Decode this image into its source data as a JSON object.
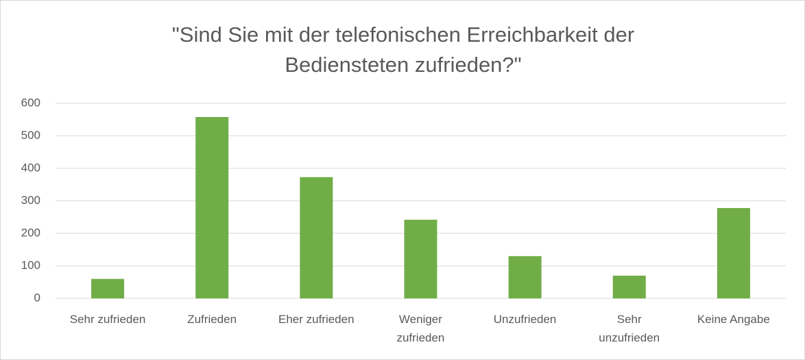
{
  "chart_data": {
    "type": "bar",
    "title": "\"Sind Sie mit der telefonischen Erreichbarkeit der Bediensteten zufrieden?\"",
    "categories": [
      "Sehr zufrieden",
      "Zufrieden",
      "Eher zufrieden",
      "Weniger\nzufrieden",
      "Unzufrieden",
      "Sehr\nunzufrieden",
      "Keine Angabe"
    ],
    "values": [
      60,
      558,
      373,
      242,
      130,
      70,
      278
    ],
    "color": "#70ad47",
    "ylim": [
      0,
      600
    ],
    "yticks": [
      0,
      100,
      200,
      300,
      400,
      500,
      600
    ],
    "grid": true
  }
}
